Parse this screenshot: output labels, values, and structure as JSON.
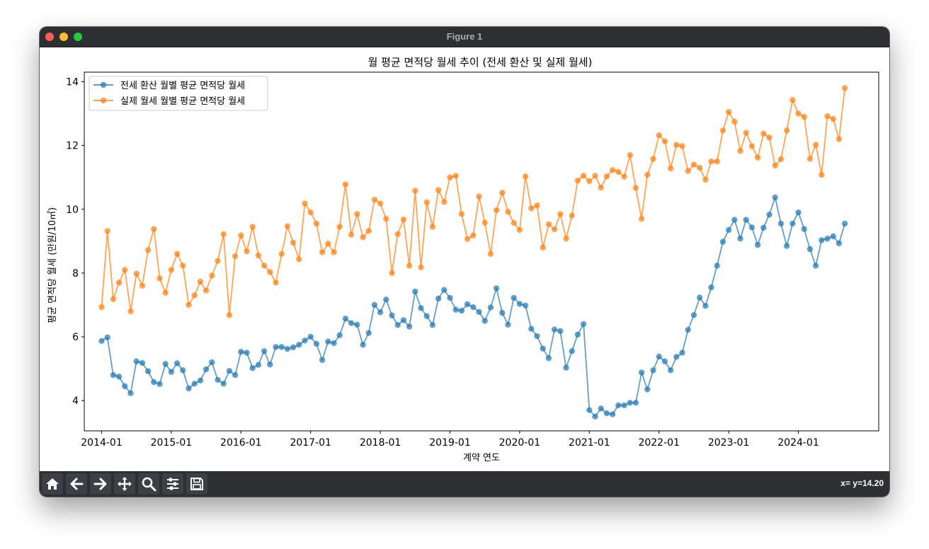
{
  "window": {
    "title": "Figure 1"
  },
  "statusbar": {
    "coord": "x= y=14.20"
  },
  "toolbar": {
    "buttons": [
      "home-icon",
      "back-icon",
      "forward-icon",
      "pan-icon",
      "zoom-icon",
      "configure-icon",
      "save-icon"
    ]
  },
  "colors": {
    "series1": "#1f77b4",
    "series2": "#ff7f0e"
  },
  "chart_data": {
    "type": "line",
    "title": "월 평균 면적당 월세 추이 (전세 환산 및 실제 월세)",
    "xlabel": "계약 연도",
    "ylabel": "평균 면적당 월세 (만원/10㎡)",
    "x_start": "2014-01",
    "x_ticks": [
      "2014-01",
      "2015-01",
      "2016-01",
      "2017-01",
      "2018-01",
      "2019-01",
      "2020-01",
      "2021-01",
      "2022-01",
      "2023-01",
      "2024-01"
    ],
    "y_ticks": [
      4,
      6,
      8,
      10,
      12,
      14
    ],
    "ylim": [
      3.05,
      14.3
    ],
    "grid": false,
    "legend": "upper-left",
    "series": [
      {
        "name": "전세 환산 월별 평균 면적당 월세",
        "values": [
          5.87,
          5.98,
          4.8,
          4.75,
          4.45,
          4.23,
          5.23,
          5.18,
          4.92,
          4.58,
          4.52,
          5.15,
          4.9,
          5.17,
          4.95,
          4.38,
          4.53,
          4.63,
          4.98,
          5.2,
          4.65,
          4.53,
          4.93,
          4.8,
          5.53,
          5.5,
          5.02,
          5.12,
          5.55,
          5.13,
          5.68,
          5.68,
          5.62,
          5.67,
          5.75,
          5.88,
          6.0,
          5.78,
          5.27,
          5.85,
          5.8,
          6.05,
          6.57,
          6.43,
          6.38,
          5.75,
          6.12,
          7.0,
          6.77,
          7.17,
          6.67,
          6.37,
          6.52,
          6.32,
          7.42,
          6.9,
          6.65,
          6.37,
          7.2,
          7.47,
          7.22,
          6.85,
          6.82,
          7.02,
          6.93,
          6.78,
          6.5,
          6.92,
          7.52,
          6.75,
          6.38,
          7.22,
          7.03,
          6.98,
          6.25,
          6.02,
          5.63,
          5.33,
          6.23,
          6.18,
          5.03,
          5.55,
          6.07,
          6.4,
          3.7,
          3.5,
          3.75,
          3.6,
          3.57,
          3.85,
          3.85,
          3.93,
          3.93,
          4.88,
          4.35,
          4.95,
          5.38,
          5.23,
          4.95,
          5.37,
          5.5,
          6.22,
          6.68,
          7.23,
          6.97,
          7.55,
          8.23,
          8.98,
          9.35,
          9.67,
          9.08,
          9.67,
          9.43,
          8.88,
          9.42,
          9.83,
          10.37,
          9.55,
          8.85,
          9.55,
          9.9,
          9.38,
          8.75,
          8.23,
          9.03,
          9.08,
          9.15,
          8.93,
          9.55
        ]
      },
      {
        "name": "실제 월세 월별 평균 면적당 월세",
        "values": [
          6.93,
          9.32,
          7.18,
          7.7,
          8.1,
          6.8,
          7.98,
          7.6,
          8.72,
          9.38,
          7.83,
          7.38,
          8.1,
          8.6,
          8.23,
          7.0,
          7.3,
          7.73,
          7.45,
          7.92,
          8.38,
          9.22,
          6.68,
          8.53,
          9.18,
          8.68,
          9.45,
          8.55,
          8.23,
          8.03,
          7.7,
          8.6,
          9.47,
          8.95,
          8.43,
          10.18,
          9.9,
          9.55,
          8.65,
          8.92,
          8.65,
          9.45,
          10.78,
          9.2,
          9.85,
          9.12,
          9.32,
          10.3,
          10.18,
          9.7,
          8.0,
          9.22,
          9.68,
          8.23,
          10.58,
          8.18,
          10.22,
          9.45,
          10.6,
          10.23,
          11.0,
          11.05,
          9.85,
          9.07,
          9.18,
          10.4,
          9.58,
          8.6,
          9.97,
          10.52,
          9.92,
          9.57,
          9.35,
          11.03,
          10.03,
          10.12,
          8.8,
          9.53,
          9.37,
          9.85,
          9.08,
          9.8,
          10.9,
          11.05,
          10.88,
          11.05,
          10.68,
          11.03,
          11.23,
          11.17,
          11.02,
          11.7,
          10.67,
          9.7,
          11.08,
          11.58,
          12.32,
          12.13,
          11.28,
          12.02,
          11.98,
          11.2,
          11.4,
          11.3,
          10.93,
          11.5,
          11.5,
          12.47,
          13.05,
          12.75,
          11.83,
          12.4,
          11.98,
          11.62,
          12.37,
          12.25,
          11.37,
          11.57,
          12.47,
          13.43,
          13.0,
          12.9,
          11.58,
          12.02,
          11.08,
          12.92,
          12.83,
          12.2,
          13.8
        ]
      }
    ]
  }
}
